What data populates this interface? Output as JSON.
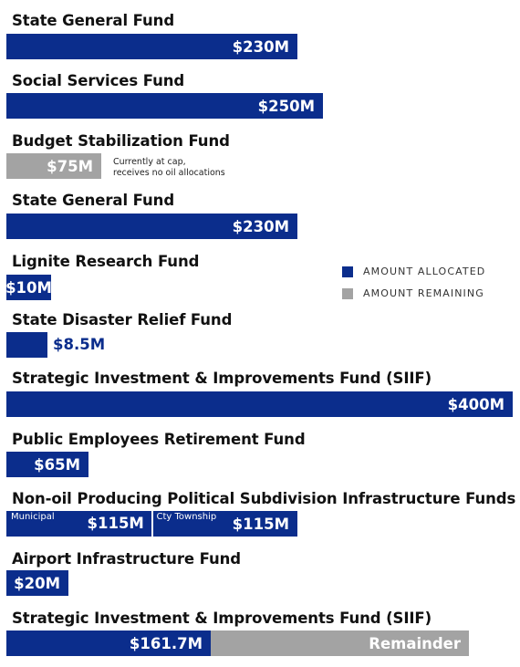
{
  "colors": {
    "allocated": "#0b2d8c",
    "remaining": "#a3a3a3"
  },
  "legend": {
    "allocated": "AMOUNT ALLOCATED",
    "remaining": "AMOUNT REMAINING",
    "placement": "right"
  },
  "chart_data": {
    "type": "bar",
    "orientation": "horizontal",
    "unit": "$M",
    "categories": [
      "State General Fund",
      "Social Services Fund",
      "Budget Stabilization Fund",
      "State General Fund",
      "Lignite Research Fund",
      "State Disaster Relief Fund",
      "Strategic Investment & Improvements Fund (SIIF)",
      "Public Employees Retirement Fund",
      "Non-oil Producing Political Subdivision Infrastructure Funds",
      "Airport Infrastructure Fund",
      "Strategic Investment & Improvements Fund (SIIF)"
    ],
    "series": [
      {
        "name": "AMOUNT ALLOCATED",
        "values": [
          230,
          250,
          0,
          230,
          10,
          8.5,
          400,
          65,
          230,
          20,
          161.7
        ]
      },
      {
        "name": "AMOUNT REMAINING",
        "values": [
          0,
          0,
          75,
          0,
          0,
          0,
          0,
          0,
          0,
          0,
          null
        ]
      }
    ],
    "value_labels": [
      "$230M",
      "$250M",
      "$75M",
      "$230M",
      "$10M",
      "$8.5M",
      "$400M",
      "$65M",
      "$115M",
      "$20M",
      "$161.7M"
    ],
    "segments": {
      "row": 8,
      "labels": [
        "Municipal",
        "Cty Township"
      ],
      "values": [
        "$115M",
        "$115M"
      ]
    },
    "notes": {
      "row": 2,
      "text": [
        "Currently at cap,",
        "receives no oil allocations"
      ]
    },
    "remainder_label": "Remainder",
    "xlim": [
      0,
      400
    ],
    "grid": false
  }
}
